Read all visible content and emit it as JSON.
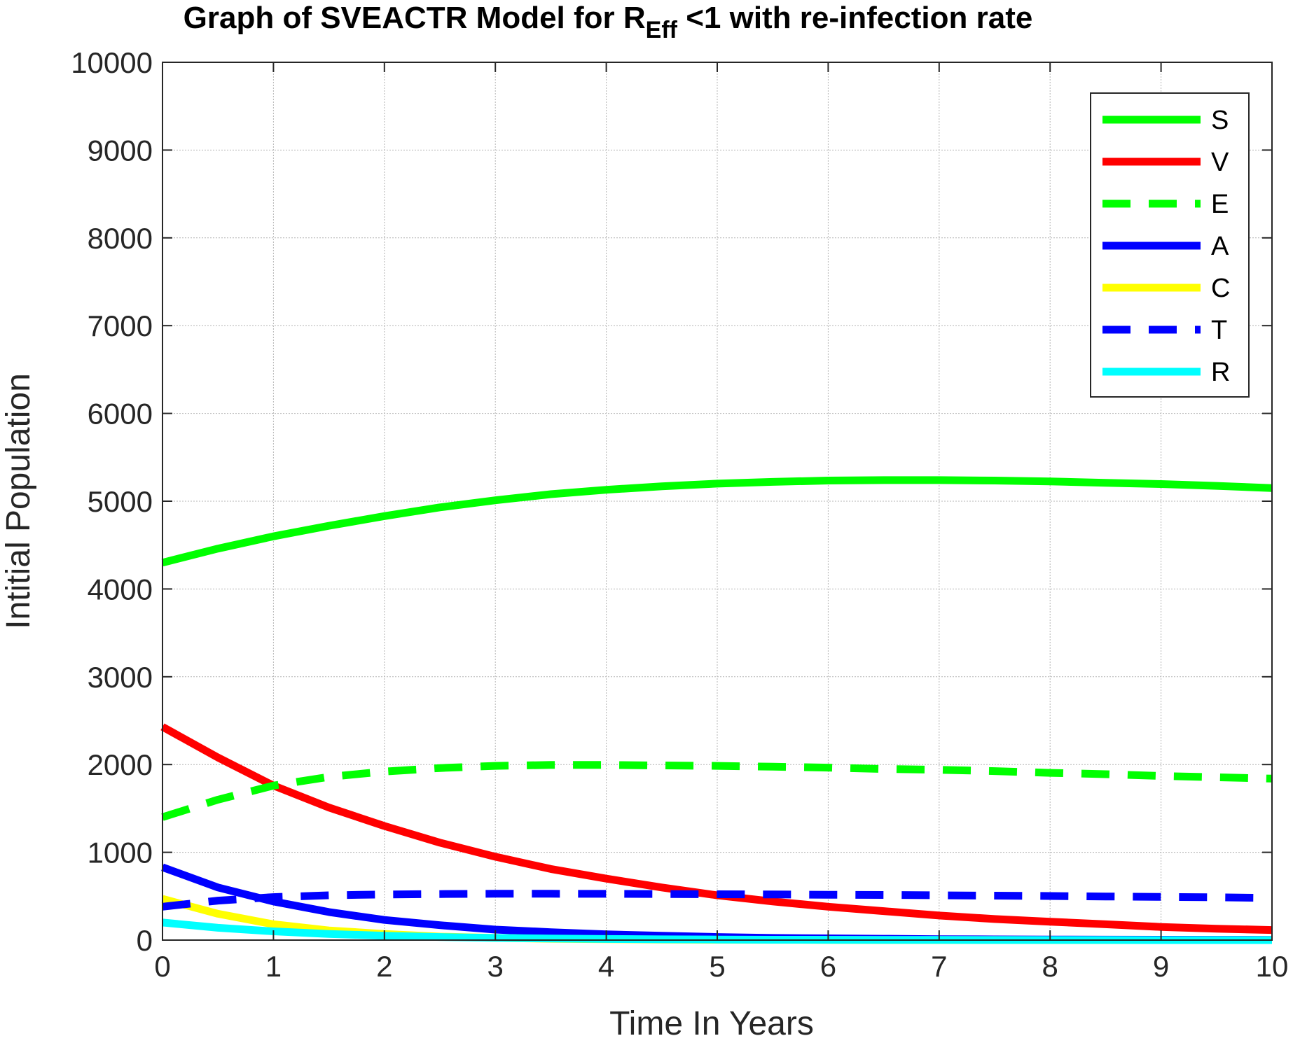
{
  "chart_data": {
    "type": "line",
    "title": {
      "main": "Graph of SVEACTR Model for R",
      "subscript": "Eff",
      "suffix": " <1 with re-infection rate"
    },
    "xlabel": "Time In Years",
    "ylabel": "Intitial Population",
    "xlim": [
      0,
      10
    ],
    "ylim": [
      0,
      10000
    ],
    "xticks": [
      "0",
      "1",
      "2",
      "3",
      "4",
      "5",
      "6",
      "7",
      "8",
      "9",
      "10"
    ],
    "yticks": [
      "0",
      "1000",
      "2000",
      "3000",
      "4000",
      "5000",
      "6000",
      "7000",
      "8000",
      "9000",
      "10000"
    ],
    "grid": true,
    "legend_position": "top-right",
    "x": [
      0,
      0.5,
      1,
      1.5,
      2,
      2.5,
      3,
      3.5,
      4,
      4.5,
      5,
      5.5,
      6,
      6.5,
      7,
      7.5,
      8,
      8.5,
      9,
      9.5,
      10
    ],
    "series": [
      {
        "name": "S",
        "color": "#00ff00",
        "style": "solid",
        "values": [
          4300,
          4460,
          4600,
          4720,
          4830,
          4930,
          5010,
          5080,
          5130,
          5170,
          5200,
          5220,
          5235,
          5240,
          5240,
          5235,
          5225,
          5210,
          5195,
          5175,
          5150
        ]
      },
      {
        "name": "V",
        "color": "#ff0000",
        "style": "solid",
        "values": [
          2430,
          2080,
          1760,
          1510,
          1300,
          1110,
          950,
          810,
          700,
          600,
          510,
          440,
          380,
          330,
          280,
          240,
          210,
          180,
          150,
          130,
          115
        ]
      },
      {
        "name": "E",
        "color": "#00ff00",
        "style": "dashed",
        "values": [
          1400,
          1600,
          1760,
          1860,
          1920,
          1960,
          1985,
          1995,
          1995,
          1990,
          1985,
          1975,
          1965,
          1950,
          1940,
          1925,
          1905,
          1890,
          1870,
          1855,
          1840
        ]
      },
      {
        "name": "A",
        "color": "#0000ff",
        "style": "solid",
        "values": [
          830,
          600,
          440,
          320,
          230,
          170,
          120,
          90,
          65,
          50,
          35,
          25,
          20,
          15,
          10,
          8,
          6,
          5,
          4,
          3,
          2
        ]
      },
      {
        "name": "C",
        "color": "#ffff00",
        "style": "solid",
        "values": [
          470,
          300,
          180,
          110,
          70,
          40,
          25,
          15,
          10,
          6,
          4,
          3,
          2,
          1,
          1,
          1,
          0,
          0,
          0,
          0,
          0
        ]
      },
      {
        "name": "T",
        "color": "#0000ff",
        "style": "dashed",
        "values": [
          380,
          450,
          490,
          510,
          520,
          525,
          528,
          528,
          527,
          525,
          522,
          520,
          517,
          514,
          510,
          506,
          502,
          497,
          492,
          487,
          480
        ]
      },
      {
        "name": "R",
        "color": "#00ffff",
        "style": "solid",
        "values": [
          200,
          140,
          100,
          70,
          50,
          35,
          25,
          18,
          13,
          9,
          6,
          4,
          3,
          2,
          2,
          1,
          1,
          1,
          0,
          0,
          0
        ]
      }
    ]
  }
}
